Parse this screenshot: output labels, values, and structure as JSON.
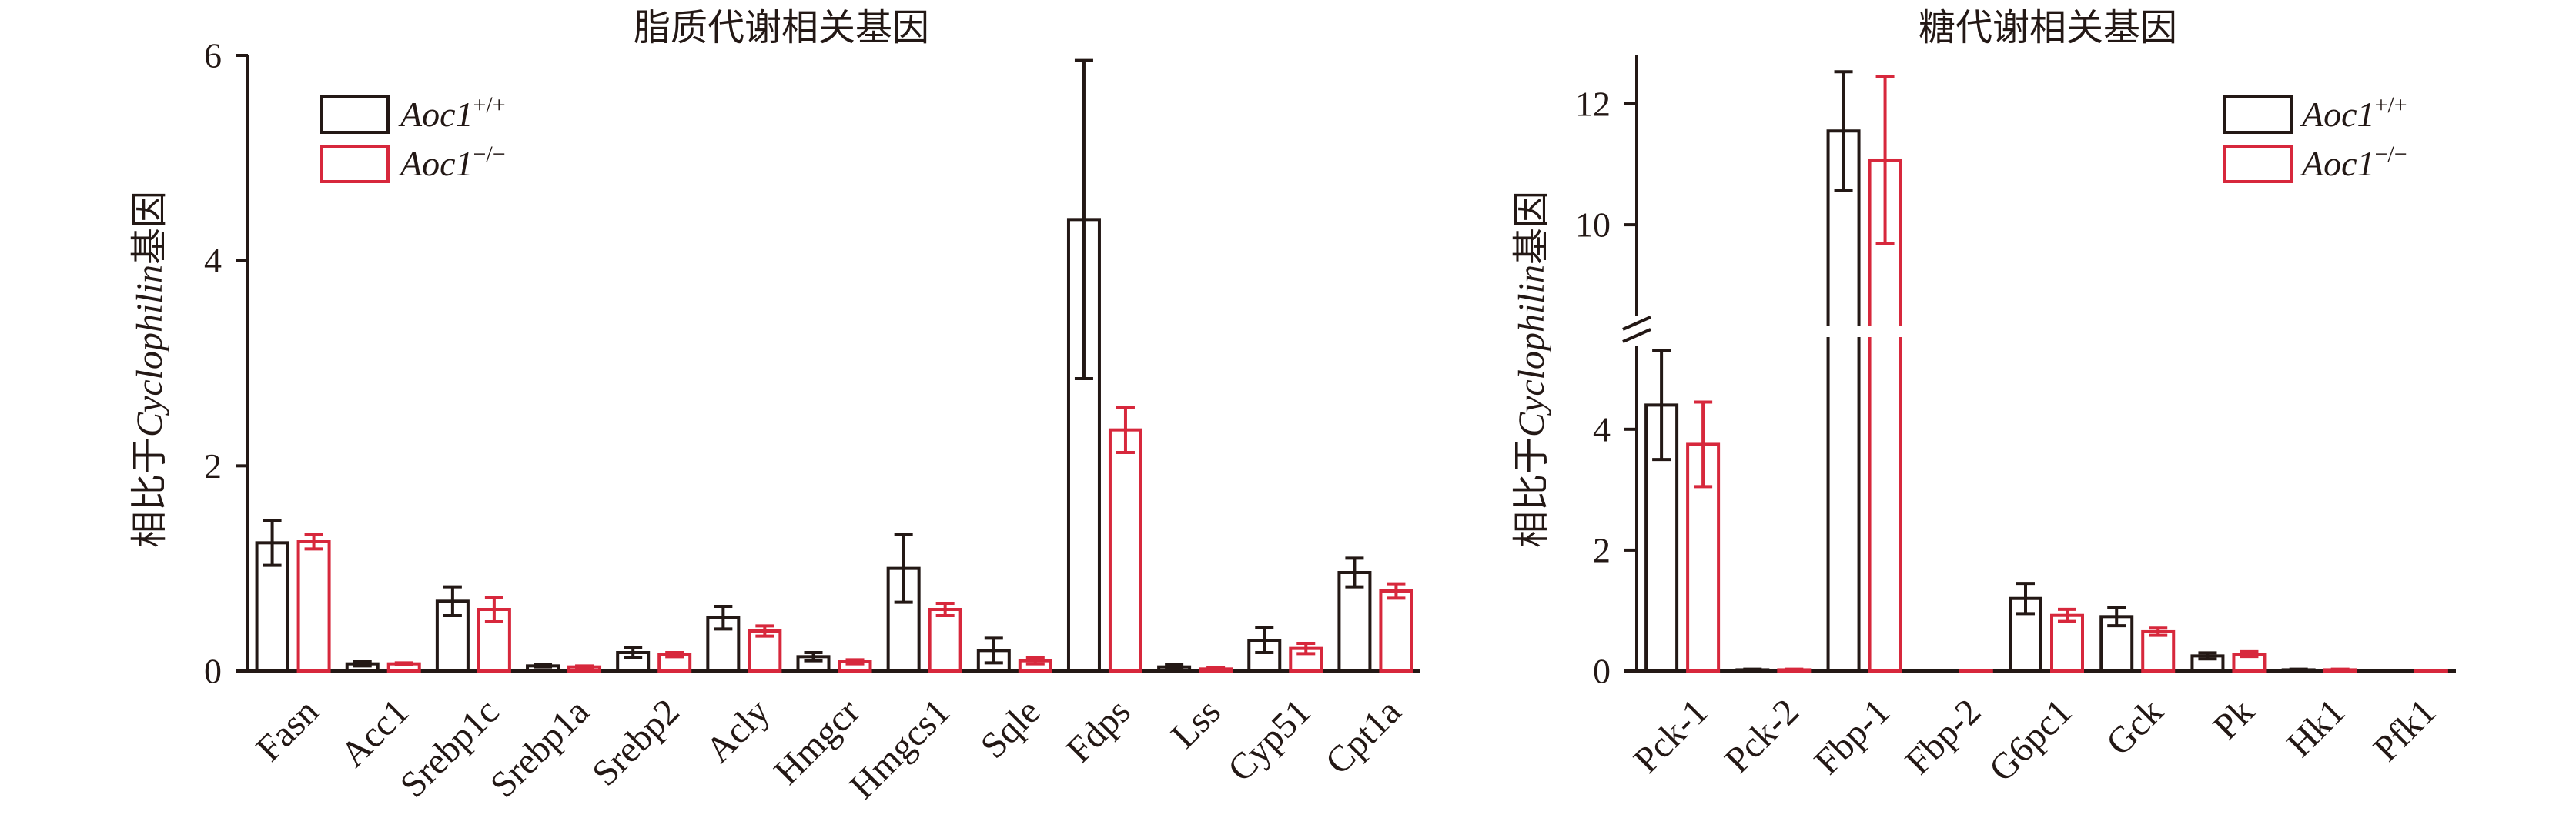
{
  "colors": {
    "wt": "#231815",
    "ko": "#d7283c",
    "axis": "#231815"
  },
  "chart_data": [
    {
      "type": "bar",
      "title": "脂质代谢相关基因",
      "ylabel_prefix": "相比于",
      "ylabel_italic": "Cyclophilin",
      "ylabel_suffix": "基因",
      "ylim": [
        0,
        6
      ],
      "yticks": [
        0,
        2,
        4,
        6
      ],
      "categories": [
        "Fasn",
        "Acc1",
        "Srebp1c",
        "Srebp1a",
        "Srebp2",
        "Acly",
        "Hmgcr",
        "Hmgcs1",
        "Sqle",
        "Fdps",
        "Lss",
        "Cyp51",
        "Cpt1a"
      ],
      "series": [
        {
          "name": "Aoc1",
          "sup": "+/+",
          "color": "#231815",
          "values": [
            1.25,
            0.07,
            0.68,
            0.05,
            0.18,
            0.52,
            0.14,
            1.0,
            0.2,
            4.4,
            0.04,
            0.3,
            0.96
          ],
          "errors": [
            0.22,
            0.02,
            0.14,
            0.01,
            0.05,
            0.11,
            0.04,
            0.33,
            0.12,
            1.55,
            0.02,
            0.12,
            0.14
          ]
        },
        {
          "name": "Aoc1",
          "sup": "−/−",
          "color": "#d7283c",
          "values": [
            1.26,
            0.07,
            0.6,
            0.04,
            0.16,
            0.39,
            0.09,
            0.6,
            0.1,
            2.35,
            0.02,
            0.22,
            0.78
          ],
          "errors": [
            0.07,
            0.01,
            0.12,
            0.01,
            0.02,
            0.05,
            0.02,
            0.06,
            0.03,
            0.22,
            0.01,
            0.05,
            0.07
          ]
        }
      ],
      "legend": "top-left",
      "grid": false
    },
    {
      "type": "bar",
      "title": "糖代谢相关基因",
      "ylabel_prefix": "相比于",
      "ylabel_italic": "Cyclophilin",
      "ylabel_suffix": "基因",
      "broken_axis": true,
      "lower_range": [
        0,
        5.5
      ],
      "upper_range": [
        8.5,
        12.8
      ],
      "yticks": [
        0,
        2,
        4,
        10,
        12
      ],
      "categories": [
        "Pck-1",
        "Pck-2",
        "Fbp-1",
        "Fbp-2",
        "G6pc1",
        "Gck",
        "Pk",
        "Hk1",
        "Pfk1"
      ],
      "series": [
        {
          "name": "Aoc1",
          "sup": "+/+",
          "color": "#231815",
          "values": [
            4.4,
            0.02,
            11.55,
            0,
            1.2,
            0.9,
            0.25,
            0.02,
            0
          ],
          "errors": [
            0.9,
            0.01,
            0.98,
            0,
            0.25,
            0.15,
            0.05,
            0.01,
            0
          ]
        },
        {
          "name": "Aoc1",
          "sup": "−/−",
          "color": "#d7283c",
          "values": [
            3.75,
            0.02,
            11.07,
            0,
            0.92,
            0.65,
            0.28,
            0.02,
            0
          ],
          "errors": [
            0.7,
            0.01,
            1.38,
            0,
            0.1,
            0.06,
            0.04,
            0.01,
            0
          ]
        }
      ],
      "legend": "top-right",
      "grid": false
    }
  ]
}
